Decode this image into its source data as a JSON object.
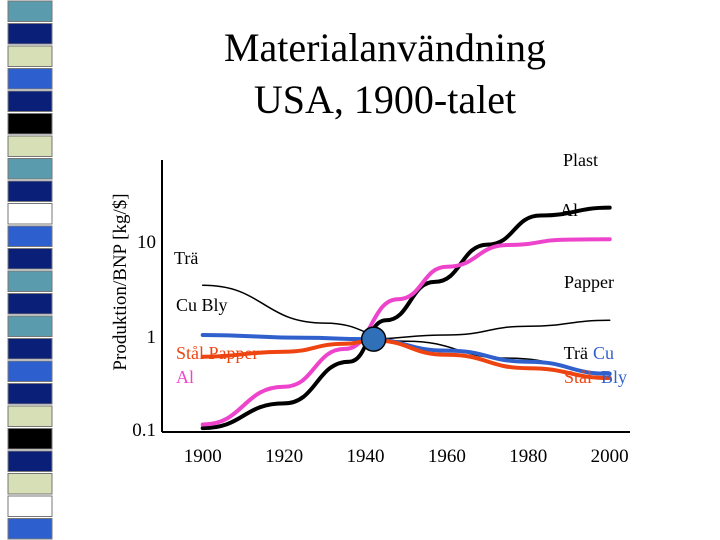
{
  "title_lines": [
    "Materialanvändning",
    "USA, 1900-talet"
  ],
  "sidebar_colors": [
    "#5b9bae",
    "#0a1f78",
    "#d7dfb6",
    "#2e5fcf",
    "#0a1f78",
    "#000000",
    "#d7dfb6",
    "#5b9bae",
    "#0a1f78",
    "#ffffff",
    "#2e5fcf",
    "#0a1f78",
    "#5b9bae",
    "#0a1f78",
    "#5b9bae",
    "#0a1f78",
    "#2e5fcf",
    "#0a1f78",
    "#d7dfb6",
    "#000000",
    "#0a1f78",
    "#d7dfb6",
    "#ffffff",
    "#2e5fcf"
  ],
  "chart_data": {
    "type": "line",
    "title": "Materialanvändning USA, 1900-talet",
    "ylabel": "Produktion/BNP [kg/$]",
    "xlabel": "",
    "yscale": "log",
    "ylim": [
      0.1,
      20
    ],
    "xlim": [
      1890,
      2005
    ],
    "x_ticks": [
      "1900",
      "1920",
      "1940",
      "1960",
      "1980",
      "2000"
    ],
    "y_ticks": [
      "0.1",
      "1",
      "10"
    ],
    "series": [
      {
        "name": "Plast",
        "color": "#000000",
        "x": [
          1900,
          1920,
          1936,
          1945,
          1957,
          1970,
          1983,
          2000
        ],
        "y": [
          0.11,
          0.2,
          0.55,
          1.5,
          3.8,
          9.4,
          19,
          23
        ]
      },
      {
        "name": "Al",
        "color": "#ee44cc",
        "x": [
          1900,
          1920,
          1935,
          1948,
          1960,
          1975,
          1990,
          2000
        ],
        "y": [
          0.12,
          0.3,
          0.75,
          2.5,
          5.5,
          9.3,
          10.6,
          10.7
        ]
      },
      {
        "name": "Trä",
        "color": "#000000",
        "x": [
          1900,
          1930,
          1950,
          1975,
          2000
        ],
        "y": [
          3.5,
          1.4,
          0.9,
          0.6,
          0.42
        ]
      },
      {
        "name": "Papper",
        "color": "#000000",
        "x": [
          1940,
          1960,
          1980,
          2000
        ],
        "y": [
          0.95,
          1.05,
          1.3,
          1.5
        ]
      },
      {
        "name": "Cu Bly",
        "color": "#3060cc",
        "x": [
          1900,
          1925,
          1940,
          1960,
          1980,
          2000
        ],
        "y": [
          1.05,
          0.98,
          0.95,
          0.72,
          0.55,
          0.41
        ]
      },
      {
        "name": "Stål",
        "color": "#ee4411",
        "x": [
          1900,
          1920,
          1935,
          1942,
          1960,
          1980,
          2000
        ],
        "y": [
          0.62,
          0.7,
          0.85,
          0.92,
          0.65,
          0.47,
          0.37
        ]
      }
    ],
    "marker": {
      "x": 1942,
      "y": 0.95,
      "color": "#3070b8"
    },
    "annotations": [
      {
        "text": "Plast",
        "x": 2000,
        "y": 23,
        "color": "#000000"
      },
      {
        "text": "Al",
        "x": 2000,
        "y": 10.5,
        "color": "#000000"
      },
      {
        "text": "Trä",
        "x": 1902,
        "y": 4.6,
        "color": "#000000"
      },
      {
        "text": "Papper",
        "x": 2000,
        "y": 1.45,
        "color": "#000000"
      },
      {
        "text": "Cu  Bly",
        "x": 1902,
        "y": 1.05,
        "color": "#000000"
      },
      {
        "text": "Stål  Papper",
        "x": 1902,
        "y": 0.45,
        "color": "#ee4411"
      },
      {
        "text": "Al",
        "x": 1902,
        "y": 0.3,
        "color": "#ee44cc"
      },
      {
        "text": "Trä",
        "x": 2000,
        "y": 0.45,
        "color": "#000000"
      },
      {
        "text": "Cu",
        "x": 2000,
        "y": 0.45,
        "color": "#3060cc"
      },
      {
        "text": "Stål",
        "x": 2000,
        "y": 0.3,
        "color": "#ee4411"
      },
      {
        "text": "Bly",
        "x": 2000,
        "y": 0.3,
        "color": "#3060cc"
      }
    ]
  }
}
